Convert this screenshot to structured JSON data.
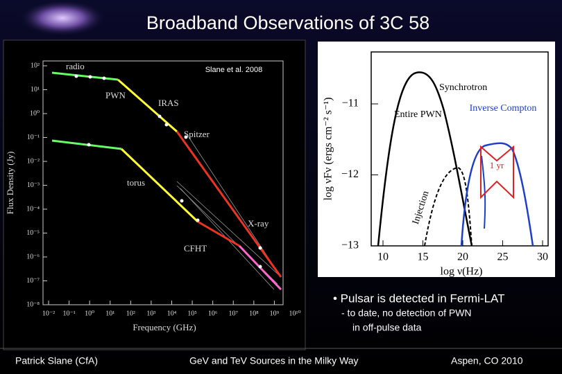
{
  "title": "Broadband Observations of 3C 58",
  "citation": "Slane et al.  2008",
  "left_plot": {
    "y_label": "Flux Density (Jy)",
    "x_label": "Frequency (GHz)",
    "y_ticks": [
      "10²",
      "10¹",
      "10⁰",
      "10⁻¹",
      "10⁻²",
      "10⁻³",
      "10⁻⁴",
      "10⁻⁵",
      "10⁻⁶",
      "10⁻⁷",
      "10⁻⁸"
    ],
    "x_ticks": [
      "10⁻²",
      "10⁻¹",
      "10⁰",
      "10¹",
      "10²",
      "10³",
      "10⁴",
      "10⁵",
      "10⁶",
      "10⁷",
      "10⁸",
      "10⁹",
      "10¹⁰"
    ],
    "labels": [
      "radio",
      "PWN",
      "IRAS",
      "Spitzer",
      "torus",
      "X-ray",
      "CFHT"
    ]
  },
  "right_plot": {
    "y_label": "log νFν (ergs cm⁻² s⁻¹)",
    "x_label": "log ν(Hz)",
    "y_ticks": [
      "−11",
      "−12",
      "−13"
    ],
    "x_ticks": [
      "10",
      "15",
      "20",
      "25",
      "30"
    ],
    "labels": [
      "Synchrotron",
      "Entire PWN",
      "Inverse Compton",
      "1 yr",
      "Injection"
    ]
  },
  "bullets": [
    "• Pulsar is detected in Fermi-LAT",
    "- to date, no detection of PWN",
    "in off-pulse data"
  ],
  "footer": [
    "Patrick Slane (CfA)",
    "GeV and TeV Sources in the Milky Way",
    "Aspen, CO 2010"
  ]
}
